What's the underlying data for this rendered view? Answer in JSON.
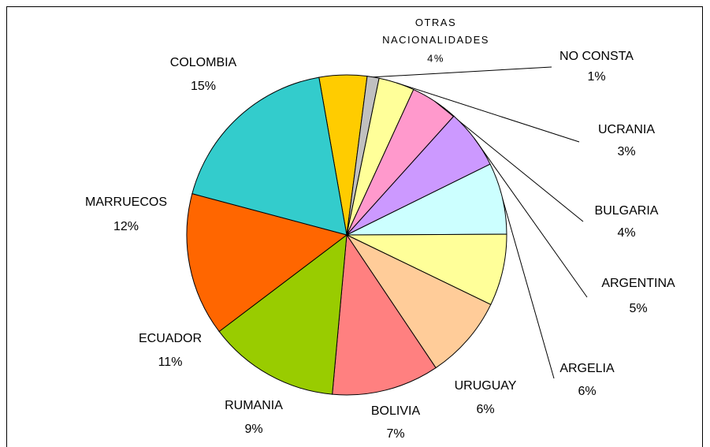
{
  "chart_data": {
    "type": "pie",
    "categories": [
      "OTRAS NACIONALIDADES",
      "NO CONSTA",
      "UCRANIA",
      "BULGARIA",
      "ARGENTINA",
      "ARGELIA",
      "URUGUAY",
      "BOLIVIA",
      "RUMANIA",
      "ECUADOR",
      "MARRUECOS",
      "COLOMBIA"
    ],
    "values": [
      4,
      1,
      3,
      4,
      5,
      6,
      6,
      7,
      9,
      11,
      12,
      15
    ],
    "value_labels": [
      "4%",
      "1%",
      "3%",
      "4%",
      "5%",
      "6%",
      "6%",
      "7%",
      "9%",
      "11%",
      "12%",
      "15%"
    ],
    "colors": [
      "#ffcc00",
      "#c0c0c0",
      "#ffff99",
      "#ff99cc",
      "#cc99ff",
      "#ccffff",
      "#ffff99",
      "#ffcc99",
      "#ff8080",
      "#99cc00",
      "#ff6600",
      "#33cccc"
    ]
  }
}
